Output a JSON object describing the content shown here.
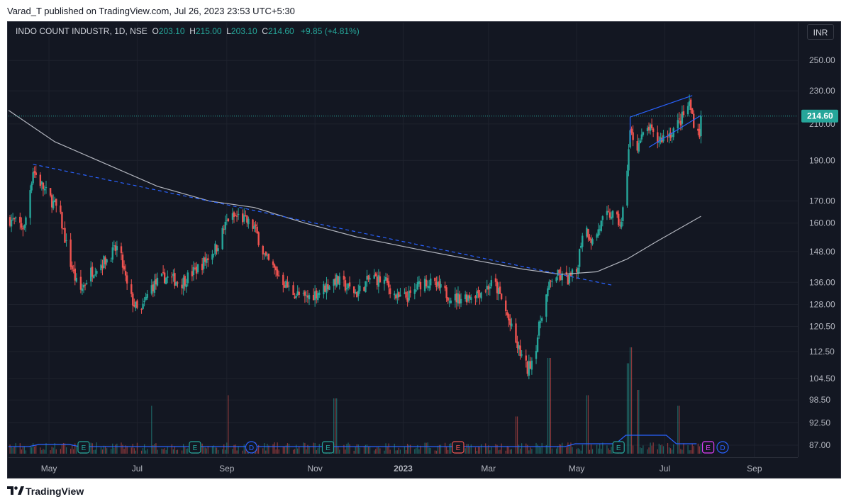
{
  "header": {
    "published_text": "Varad_T published on TradingView.com, Jul 26, 2023 23:53 UTC+5:30"
  },
  "legend": {
    "symbol": "INDO COUNT INDUSTR, 1D, NSE",
    "o_label": "O",
    "o_value": "203.10",
    "h_label": "H",
    "h_value": "215.00",
    "l_label": "L",
    "l_value": "203.10",
    "c_label": "C",
    "c_value": "214.60",
    "change": "+9.85 (+4.81%)"
  },
  "currency_button": "INR",
  "footer": {
    "brand": "TradingView"
  },
  "colors": {
    "up": "#26a69a",
    "down": "#ef5350",
    "background": "#131722",
    "ma": "#b2b5be",
    "trendline": "#2962ff",
    "volume_ma": "#2962ff",
    "grid": "#1e222d",
    "earnings_green": "#26a69a",
    "earnings_red": "#ef5350",
    "event_purple": "#e040fb"
  },
  "chart_data": {
    "type": "candlestick",
    "symbol": "INDO COUNT INDUSTR",
    "interval": "1D",
    "exchange": "NSE",
    "y_scale": "log",
    "price_range": [
      85,
      258
    ],
    "y_ticks": [
      "250.00",
      "230.00",
      "210.00",
      "190.00",
      "170.00",
      "160.00",
      "148.00",
      "136.00",
      "128.00",
      "120.50",
      "112.50",
      "104.50",
      "98.50",
      "92.50",
      "87.00"
    ],
    "x_ticks": [
      "May",
      "Jul",
      "Sep",
      "Nov",
      "2023",
      "Mar",
      "May",
      "Jul",
      "Sep"
    ],
    "last_price_label": "214.60",
    "last_price": 214.6,
    "x_range": [
      "2022-04-03",
      "2023-10-01"
    ],
    "last_date": "2023-07-26",
    "price_path_approx": [
      [
        "2022-04-03",
        162
      ],
      [
        "2022-04-14",
        158
      ],
      [
        "2022-04-20",
        185
      ],
      [
        "2022-04-28",
        175
      ],
      [
        "2022-05-08",
        165
      ],
      [
        "2022-05-15",
        145
      ],
      [
        "2022-05-22",
        132
      ],
      [
        "2022-05-30",
        140
      ],
      [
        "2022-06-10",
        145
      ],
      [
        "2022-06-18",
        150
      ],
      [
        "2022-06-25",
        132
      ],
      [
        "2022-07-03",
        124
      ],
      [
        "2022-07-10",
        134
      ],
      [
        "2022-07-20",
        138
      ],
      [
        "2022-08-01",
        136
      ],
      [
        "2022-08-15",
        143
      ],
      [
        "2022-08-25",
        150
      ],
      [
        "2022-09-02",
        162
      ],
      [
        "2022-09-10",
        163
      ],
      [
        "2022-09-20",
        158
      ],
      [
        "2022-09-28",
        145
      ],
      [
        "2022-10-05",
        140
      ],
      [
        "2022-10-15",
        133
      ],
      [
        "2022-10-25",
        130
      ],
      [
        "2022-11-05",
        133
      ],
      [
        "2022-11-15",
        137
      ],
      [
        "2022-11-30",
        132
      ],
      [
        "2022-12-10",
        138
      ],
      [
        "2022-12-20",
        136
      ],
      [
        "2022-12-28",
        130
      ],
      [
        "2023-01-06",
        131
      ],
      [
        "2023-01-15",
        137
      ],
      [
        "2023-01-25",
        134
      ],
      [
        "2023-02-05",
        130
      ],
      [
        "2023-02-15",
        131
      ],
      [
        "2023-02-25",
        133
      ],
      [
        "2023-03-05",
        136
      ],
      [
        "2023-03-12",
        127
      ],
      [
        "2023-03-20",
        115
      ],
      [
        "2023-03-28",
        107
      ],
      [
        "2023-04-02",
        112
      ],
      [
        "2023-04-08",
        128
      ],
      [
        "2023-04-15",
        139
      ],
      [
        "2023-04-25",
        137
      ],
      [
        "2023-05-01",
        140
      ],
      [
        "2023-05-06",
        160
      ],
      [
        "2023-05-12",
        152
      ],
      [
        "2023-05-20",
        162
      ],
      [
        "2023-05-25",
        164
      ],
      [
        "2023-06-01",
        159
      ],
      [
        "2023-06-04",
        178
      ],
      [
        "2023-06-07",
        205
      ],
      [
        "2023-06-12",
        198
      ],
      [
        "2023-06-20",
        208
      ],
      [
        "2023-06-25",
        200
      ],
      [
        "2023-07-05",
        205
      ],
      [
        "2023-07-12",
        212
      ],
      [
        "2023-07-18",
        222
      ],
      [
        "2023-07-22",
        208
      ],
      [
        "2023-07-25",
        205
      ],
      [
        "2023-07-26",
        214.6
      ]
    ],
    "moving_average_approx": [
      [
        "2022-04-03",
        218
      ],
      [
        "2022-05-05",
        200
      ],
      [
        "2022-06-10",
        188
      ],
      [
        "2022-07-15",
        177
      ],
      [
        "2022-08-20",
        170
      ],
      [
        "2022-09-20",
        167
      ],
      [
        "2022-10-25",
        160
      ],
      [
        "2022-11-30",
        154
      ],
      [
        "2023-01-10",
        149
      ],
      [
        "2023-02-15",
        145
      ],
      [
        "2023-03-25",
        141
      ],
      [
        "2023-04-20",
        139
      ],
      [
        "2023-05-15",
        140
      ],
      [
        "2023-06-05",
        145
      ],
      [
        "2023-06-25",
        152
      ],
      [
        "2023-07-26",
        163
      ]
    ],
    "trendlines": [
      {
        "style": "dashed",
        "from": [
          "2022-04-20",
          188
        ],
        "to": [
          "2023-05-25",
          135
        ]
      },
      {
        "style": "solid",
        "from": [
          "2023-06-07",
          214
        ],
        "to": [
          "2023-07-20",
          227
        ]
      },
      {
        "style": "solid",
        "from": [
          "2023-06-20",
          197
        ],
        "to": [
          "2023-07-26",
          215
        ]
      },
      {
        "style": "solid",
        "from": [
          "2023-06-07",
          214
        ],
        "to": [
          "2023-06-07",
          200
        ]
      }
    ],
    "volume_spikes": [
      [
        "2022-09-03",
        0.55
      ],
      [
        "2022-11-15",
        0.52
      ],
      [
        "2022-07-10",
        0.45
      ],
      [
        "2023-04-12",
        0.9
      ],
      [
        "2023-05-08",
        0.55
      ],
      [
        "2023-06-07",
        1.0
      ],
      [
        "2023-06-05",
        0.85
      ],
      [
        "2023-06-12",
        0.6
      ],
      [
        "2023-07-10",
        0.45
      ],
      [
        "2023-03-20",
        0.35
      ]
    ],
    "events": [
      {
        "type": "E",
        "date": "2022-05-25",
        "color": "green"
      },
      {
        "type": "E",
        "date": "2022-08-10",
        "color": "green"
      },
      {
        "type": "D",
        "date": "2022-09-18",
        "color": "blue"
      },
      {
        "type": "E",
        "date": "2022-11-10",
        "color": "green"
      },
      {
        "type": "E",
        "date": "2023-02-08",
        "color": "red"
      },
      {
        "type": "E",
        "date": "2023-05-30",
        "color": "green"
      },
      {
        "type": "E",
        "date": "2023-07-31",
        "color": "purple"
      },
      {
        "type": "D",
        "date": "2023-08-10",
        "color": "blue"
      }
    ]
  }
}
